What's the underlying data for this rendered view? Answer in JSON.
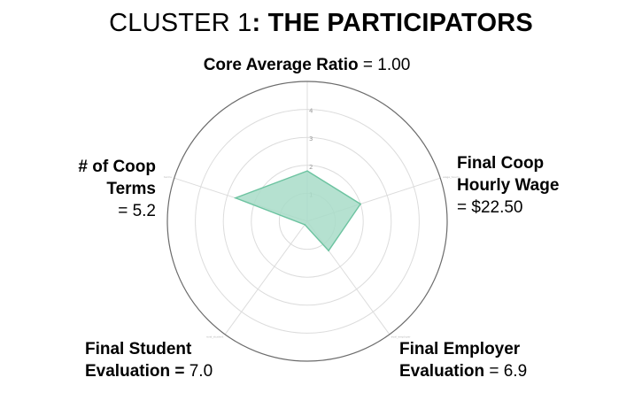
{
  "title": {
    "prefix": "CLUSTER 1",
    "bold": ": THE PARTICIPATORS"
  },
  "labels": {
    "top": {
      "name": "Core Average Ratio",
      "value": " = 1.00"
    },
    "left": {
      "line1": "# of Coop",
      "line2": "Terms",
      "line3": "= 5.2"
    },
    "right": {
      "line1": "Final Coop",
      "line2": "Hourly Wage",
      "line3": "= $22.50"
    },
    "bottom_left": {
      "line1": "Final Student",
      "line2_bold": "Evaluation =",
      "line2_value": " 7.0"
    },
    "bottom_right": {
      "line1": "Final Employer",
      "line2_bold": "Evaluation",
      "line2_value": " = 6.9"
    }
  },
  "chart_data": {
    "type": "radar",
    "axes": [
      "core",
      "wage_hourly",
      "eval_employer",
      "eval_student",
      "terms"
    ],
    "rmax": 5,
    "ticks": [
      "1",
      "2",
      "3",
      "4"
    ],
    "series": [
      {
        "values": [
          1.8,
          2.0,
          1.3,
          0.15,
          2.7
        ]
      }
    ],
    "grid": true,
    "colors": {
      "fill": "#a8dcc8",
      "stroke": "#6cc3a0",
      "grid": "#dcdcdc",
      "outer": "#6b6b6b"
    }
  }
}
